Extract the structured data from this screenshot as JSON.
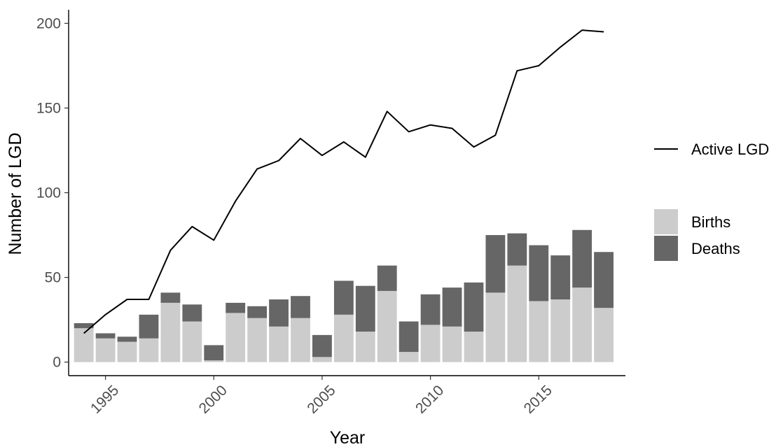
{
  "chart_data": {
    "type": "bar",
    "stacked": true,
    "xlabel": "Year",
    "ylabel": "Number of LGD",
    "x": [
      1994,
      1995,
      1996,
      1997,
      1998,
      1999,
      2000,
      2001,
      2002,
      2003,
      2004,
      2005,
      2006,
      2007,
      2008,
      2009,
      2010,
      2011,
      2012,
      2013,
      2014,
      2015,
      2016,
      2017,
      2018
    ],
    "xticks": [
      "1995",
      "2000",
      "2005",
      "2010",
      "2015"
    ],
    "yticks": [
      "0",
      "50",
      "100",
      "150",
      "200"
    ],
    "ylim": [
      -8,
      208
    ],
    "xlim": [
      1993.3,
      2019.0
    ],
    "series": [
      {
        "name": "Births",
        "kind": "bar",
        "color": "#cccccc",
        "values": [
          20,
          14,
          12,
          14,
          35,
          24,
          1,
          29,
          26,
          21,
          26,
          3,
          28,
          18,
          42,
          6,
          22,
          21,
          18,
          41,
          57,
          36,
          37,
          44,
          32
        ]
      },
      {
        "name": "Deaths",
        "kind": "bar",
        "color": "#666666",
        "values": [
          3,
          3,
          3,
          14,
          6,
          10,
          9,
          6,
          7,
          16,
          13,
          13,
          20,
          27,
          15,
          18,
          18,
          23,
          29,
          34,
          19,
          33,
          26,
          34,
          33
        ]
      },
      {
        "name": "Active LGD",
        "kind": "line",
        "color": "#000000",
        "values": [
          17,
          28,
          37,
          37,
          66,
          80,
          72,
          95,
          114,
          119,
          132,
          122,
          130,
          121,
          148,
          136,
          140,
          138,
          127,
          134,
          172,
          175,
          186,
          196,
          195
        ]
      }
    ],
    "legend": {
      "line_entries": [
        "Active LGD"
      ],
      "fill_entries": [
        "Births",
        "Deaths"
      ],
      "placement": "right"
    },
    "grid": false
  }
}
